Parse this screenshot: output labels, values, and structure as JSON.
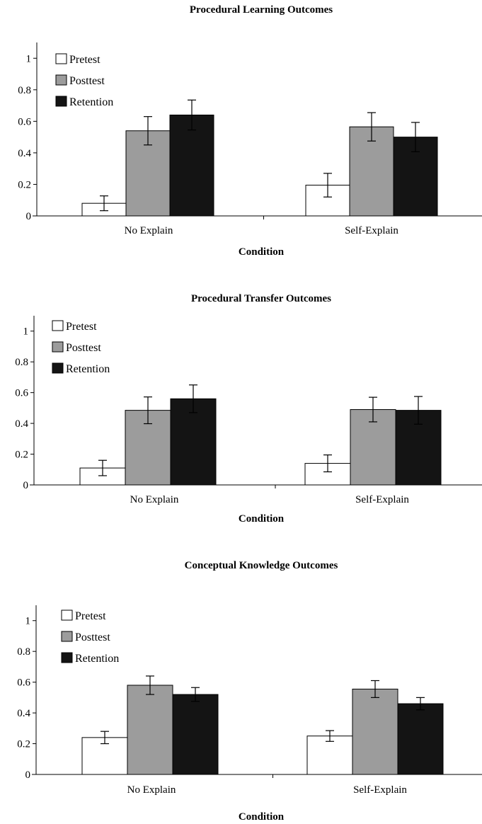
{
  "chart_data": [
    {
      "type": "bar",
      "title": "Procedural Learning Outcomes",
      "xlabel": "Condition",
      "ylabel": "",
      "categories": [
        "No Explain",
        "Self-Explain"
      ],
      "series": [
        {
          "name": "Pretest",
          "values": [
            0.08,
            0.195
          ],
          "errors": [
            0.047,
            0.075
          ]
        },
        {
          "name": "Posttest",
          "values": [
            0.54,
            0.565
          ],
          "errors": [
            0.09,
            0.09
          ]
        },
        {
          "name": "Retention",
          "values": [
            0.64,
            0.5
          ],
          "errors": [
            0.095,
            0.093
          ]
        }
      ],
      "yticks": [
        "0",
        "0.2",
        "0.4",
        "0.6",
        "0.8",
        "1"
      ],
      "ylim": [
        0,
        1.1
      ],
      "legend": "top-left",
      "grid": false
    },
    {
      "type": "bar",
      "title": "Procedural Transfer Outcomes",
      "xlabel": "Condition",
      "ylabel": "",
      "categories": [
        "No Explain",
        "Self-Explain"
      ],
      "series": [
        {
          "name": "Pretest",
          "values": [
            0.11,
            0.14
          ],
          "errors": [
            0.05,
            0.055
          ]
        },
        {
          "name": "Posttest",
          "values": [
            0.485,
            0.49
          ],
          "errors": [
            0.087,
            0.08
          ]
        },
        {
          "name": "Retention",
          "values": [
            0.56,
            0.485
          ],
          "errors": [
            0.09,
            0.09
          ]
        }
      ],
      "yticks": [
        "0",
        "0.2",
        "0.4",
        "0.6",
        "0.8",
        "1"
      ],
      "ylim": [
        0,
        1.1
      ],
      "legend": "top-left",
      "grid": false
    },
    {
      "type": "bar",
      "title": "Conceptual Knowledge Outcomes",
      "xlabel": "Condition",
      "ylabel": "",
      "categories": [
        "No Explain",
        "Self-Explain"
      ],
      "series": [
        {
          "name": "Pretest",
          "values": [
            0.24,
            0.25
          ],
          "errors": [
            0.04,
            0.035
          ]
        },
        {
          "name": "Posttest",
          "values": [
            0.58,
            0.555
          ],
          "errors": [
            0.06,
            0.055
          ]
        },
        {
          "name": "Retention",
          "values": [
            0.52,
            0.46
          ],
          "errors": [
            0.045,
            0.04
          ]
        }
      ],
      "yticks": [
        "0",
        "0.2",
        "0.4",
        "0.6",
        "0.8",
        "1"
      ],
      "ylim": [
        0,
        1.1
      ],
      "legend": "top-left",
      "grid": false
    }
  ],
  "colors": {
    "Pretest": "#ffffff",
    "Posttest": "#9c9c9c",
    "Retention": "#141414",
    "axis": "#000000"
  }
}
